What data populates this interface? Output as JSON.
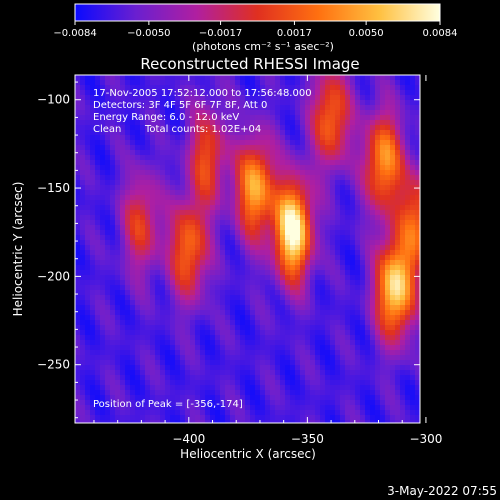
{
  "chart_data": {
    "type": "heatmap",
    "title": "Reconstructed RHESSI Image",
    "xlabel": "Heliocentric X (arcsec)",
    "ylabel": "Heliocentric Y (arcsec)",
    "xlim": [
      -448,
      -302.5
    ],
    "ylim": [
      -283,
      -86
    ],
    "x_ticks": [
      -400,
      -350,
      -300
    ],
    "x_tick_labels": [
      "−400",
      "−350",
      "−300"
    ],
    "y_ticks": [
      -100,
      -150,
      -200,
      -250
    ],
    "y_tick_labels": [
      "−100",
      "−150",
      "−200",
      "−250"
    ],
    "colorbar": {
      "range": [
        -0.0084,
        0.0084
      ],
      "ticks": [
        -0.0084,
        -0.005,
        -0.0017,
        0.0017,
        0.005,
        0.0084
      ],
      "tick_labels": [
        "−0.0084",
        "−0.0050",
        "−0.0017",
        "0.0017",
        "0.0050",
        "0.0084"
      ],
      "units": "(photons cm⁻² s⁻¹ asec⁻²)"
    },
    "colormap_colors": [
      "#0a0aff",
      "#6a1fd0",
      "#b01fa0",
      "#e03020",
      "#ff7010",
      "#ffc040",
      "#ffffe0"
    ],
    "annotations": {
      "time_range": "17-Nov-2005 17:52:12.000 to 17:56:48.000",
      "detectors": "Detectors: 3F 4F 5F 6F 7F 8F, Att 0",
      "energy_range": "Energy Range: 6.0 - 12.0 keV",
      "clean_label": "Clean",
      "total_counts": "Total counts: 1.02E+04",
      "peak": "Position of Peak = [-356,-174]"
    },
    "sources": [
      {
        "x": -356,
        "y": -174,
        "intensity": 1.0
      },
      {
        "x": -313,
        "y": -207,
        "intensity": 0.9
      },
      {
        "x": -372,
        "y": -150,
        "intensity": 0.75
      },
      {
        "x": -318,
        "y": -135,
        "intensity": 0.7
      },
      {
        "x": -340,
        "y": -110,
        "intensity": 0.6
      },
      {
        "x": -400,
        "y": -185,
        "intensity": 0.6
      },
      {
        "x": -392,
        "y": -132,
        "intensity": 0.5
      },
      {
        "x": -420,
        "y": -170,
        "intensity": 0.45
      },
      {
        "x": -303,
        "y": -168,
        "intensity": 0.55
      }
    ],
    "background_level": -0.3,
    "grid": false
  },
  "footer": {
    "timestamp": "3-May-2022 07:55"
  }
}
